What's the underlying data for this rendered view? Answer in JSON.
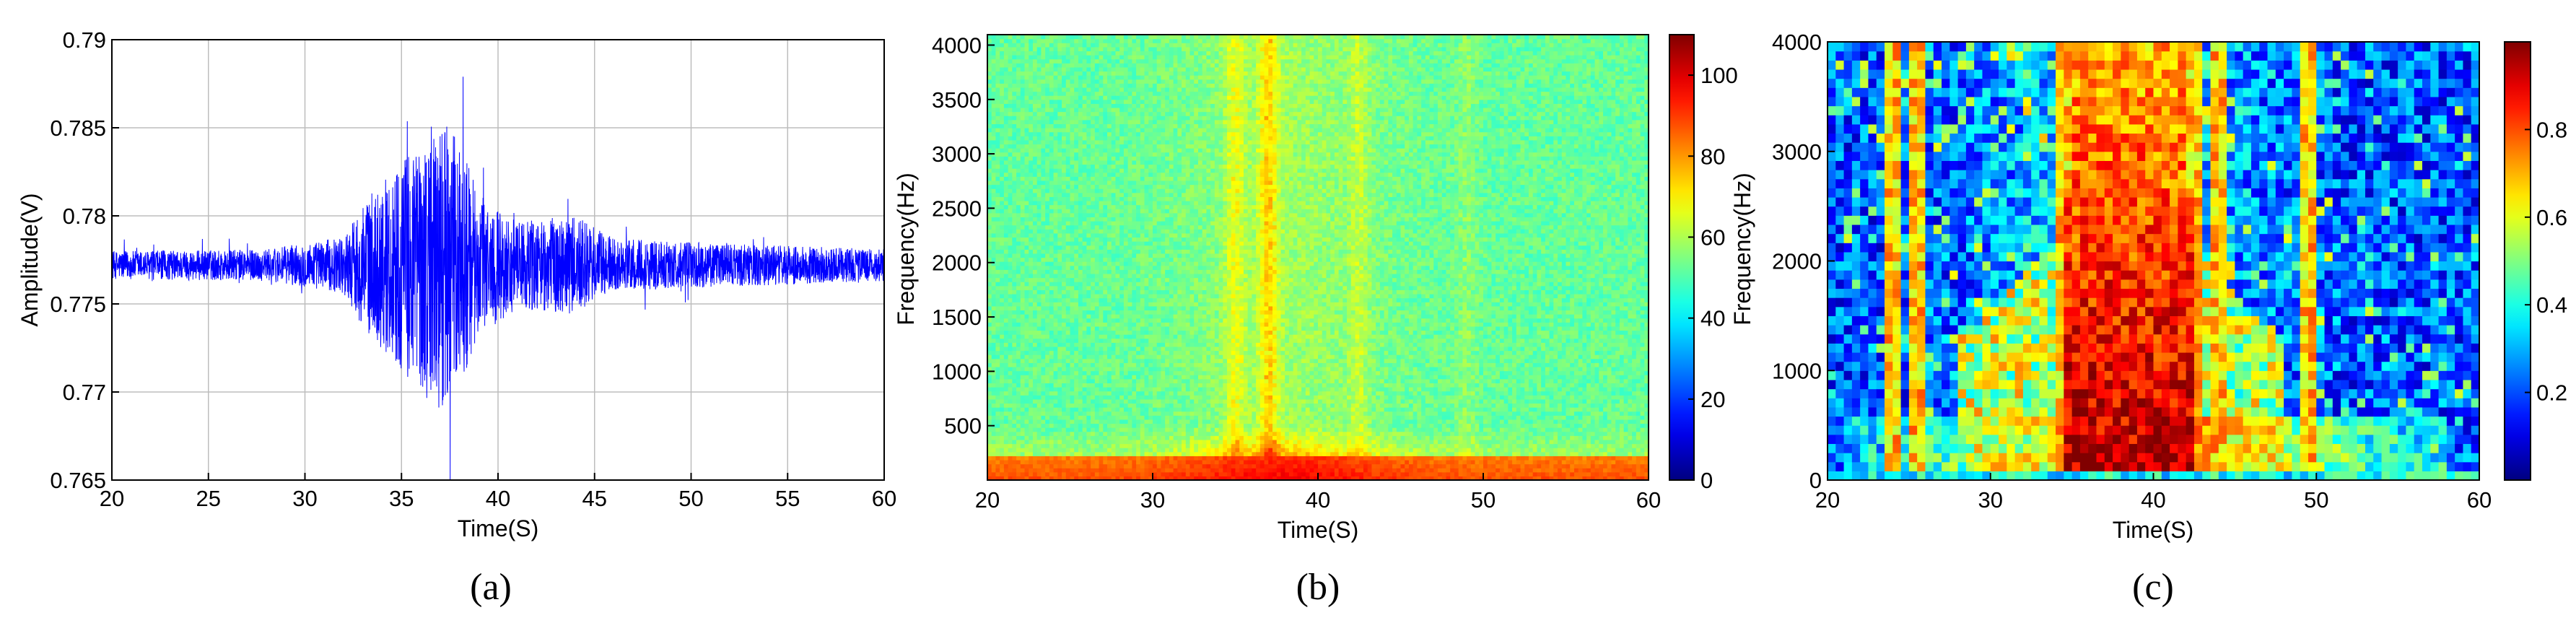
{
  "captions": [
    "(a)",
    "(b)",
    "(c)"
  ],
  "chart_data": [
    {
      "type": "line",
      "xlabel": "Time(S)",
      "ylabel": "Amplitude(V)",
      "xlim": [
        20,
        60
      ],
      "ylim": [
        0.765,
        0.79
      ],
      "xticks": [
        20,
        25,
        30,
        35,
        40,
        45,
        50,
        55,
        60
      ],
      "yticks": [
        0.765,
        0.77,
        0.775,
        0.78,
        0.785,
        0.79
      ],
      "grid": true,
      "line_color": "#0000ff",
      "baseline": 0.7772,
      "envelope": [
        {
          "x": 20,
          "amp": 0.0008
        },
        {
          "x": 28,
          "amp": 0.0009
        },
        {
          "x": 32,
          "amp": 0.0016
        },
        {
          "x": 33,
          "amp": 0.0035
        },
        {
          "x": 35,
          "amp": 0.006
        },
        {
          "x": 37,
          "amp": 0.0085
        },
        {
          "x": 38,
          "amp": 0.007
        },
        {
          "x": 39,
          "amp": 0.004
        },
        {
          "x": 41,
          "amp": 0.0025
        },
        {
          "x": 44,
          "amp": 0.0028
        },
        {
          "x": 46,
          "amp": 0.0015
        },
        {
          "x": 50,
          "amp": 0.0013
        },
        {
          "x": 55,
          "amp": 0.0011
        },
        {
          "x": 60,
          "amp": 0.0009
        }
      ]
    },
    {
      "type": "heatmap",
      "xlabel": "Time(S)",
      "ylabel": "Frequency(Hz)",
      "xlim": [
        20,
        60
      ],
      "ylim": [
        0,
        4096
      ],
      "xticks": [
        20,
        30,
        40,
        50,
        60
      ],
      "yticks": [
        500,
        1000,
        1500,
        2000,
        2500,
        3000,
        3500,
        4000
      ],
      "colorbar": {
        "range": [
          0,
          110
        ],
        "ticks": [
          0,
          20,
          40,
          60,
          80,
          100
        ],
        "colormap": "jet"
      },
      "background_level": 52,
      "low_freq_band_level": 85,
      "events": [
        {
          "x": 35,
          "level": 64
        },
        {
          "x": 37,
          "level": 70
        },
        {
          "x": 42.5,
          "level": 60
        },
        {
          "x": 49,
          "level": 57
        }
      ]
    },
    {
      "type": "heatmap",
      "xlabel": "Time(S)",
      "ylabel": "Frequency(Hz)",
      "xlim": [
        20,
        60
      ],
      "ylim": [
        0,
        4000
      ],
      "xticks": [
        20,
        30,
        40,
        50,
        60
      ],
      "yticks": [
        0,
        1000,
        2000,
        3000,
        4000
      ],
      "colorbar": {
        "range": [
          0,
          1
        ],
        "ticks": [
          0.2,
          0.4,
          0.6,
          0.8
        ],
        "colormap": "jet"
      },
      "background_level": 0.2,
      "high_energy_region": {
        "time": [
          34.5,
          42.5
        ],
        "freq": [
          0,
          4000
        ],
        "level": 0.95
      },
      "mid_energy_region": {
        "time": [
          28,
          48
        ],
        "freq": [
          0,
          2500
        ],
        "level": 0.55
      },
      "low_freq_band": {
        "freq": [
          0,
          600
        ],
        "level": 0.75
      },
      "bright_columns": [
        24,
        25.5,
        34.5,
        36,
        37.5,
        42.5,
        44,
        49.5
      ]
    }
  ]
}
